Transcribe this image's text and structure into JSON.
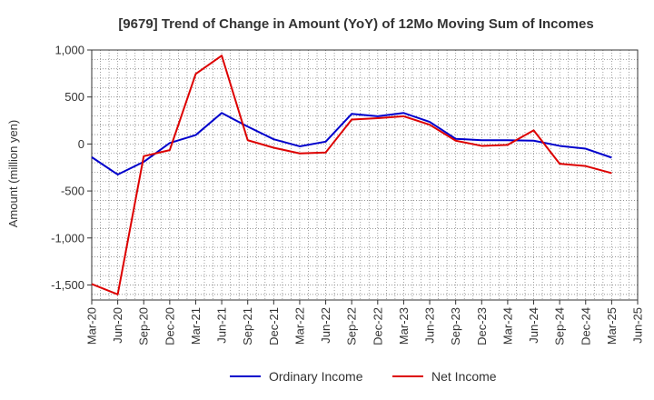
{
  "chart_data": {
    "type": "line",
    "title": "[9679]  Trend of Change in Amount (YoY) of 12Mo Moving Sum of Incomes",
    "ylabel": "Amount (million yen)",
    "xlabel": "",
    "x_ticks": [
      "Mar-20",
      "Jun-20",
      "Sep-20",
      "Dec-20",
      "Mar-21",
      "Jun-21",
      "Sep-21",
      "Dec-21",
      "Mar-22",
      "Jun-22",
      "Sep-22",
      "Dec-22",
      "Mar-23",
      "Jun-23",
      "Sep-23",
      "Dec-23",
      "Mar-24",
      "Jun-24",
      "Sep-24",
      "Dec-24",
      "Mar-25",
      "Jun-25"
    ],
    "y_ticks": [
      1000,
      500,
      0,
      -500,
      -1000,
      -1500
    ],
    "y_tick_labels": [
      "1,000",
      "500",
      "0",
      "-500",
      "-1,000",
      "-1,500"
    ],
    "ylim": [
      -1660,
      1000
    ],
    "grid": true,
    "legend_position": "bottom",
    "series": [
      {
        "name": "Ordinary Income",
        "color": "#0000cc",
        "values": [
          -140,
          -325,
          -190,
          10,
          95,
          330,
          185,
          50,
          -25,
          25,
          320,
          295,
          330,
          235,
          55,
          40,
          40,
          35,
          -20,
          -50,
          -145
        ]
      },
      {
        "name": "Net Income",
        "color": "#dd0000",
        "values": [
          -1490,
          -1600,
          -130,
          -65,
          745,
          940,
          40,
          -40,
          -100,
          -90,
          260,
          275,
          295,
          205,
          35,
          -20,
          -10,
          145,
          -210,
          -235,
          -310
        ]
      }
    ]
  }
}
